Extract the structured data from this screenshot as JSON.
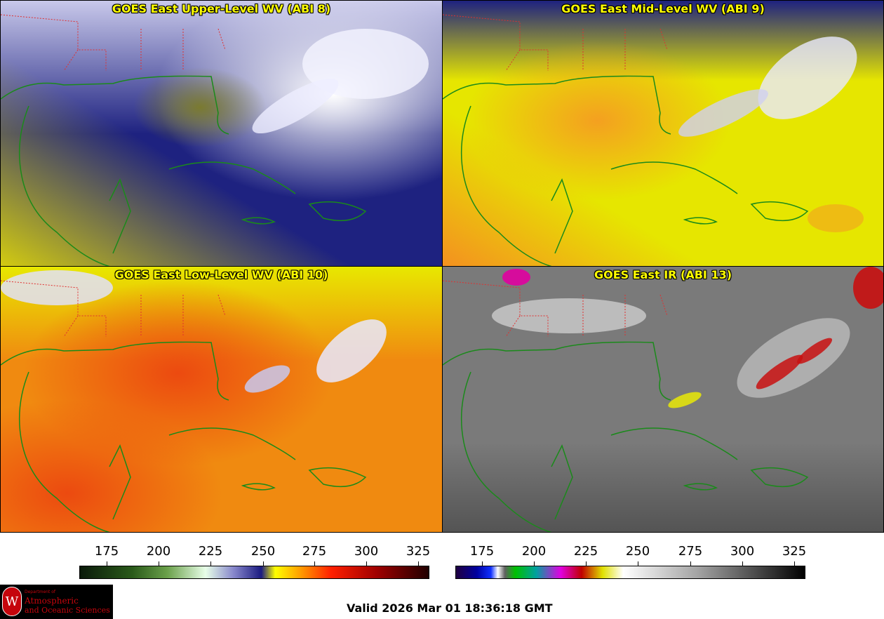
{
  "panels": [
    {
      "title": "GOES East Upper-Level WV (ABI 8)"
    },
    {
      "title": "GOES East Mid-Level WV (ABI 9)"
    },
    {
      "title": "GOES East Low-Level WV (ABI 10)"
    },
    {
      "title": "GOES East IR (ABI 13)"
    }
  ],
  "wv_scale": {
    "ticks": [
      "175",
      "200",
      "225",
      "250",
      "275",
      "300",
      "325"
    ]
  },
  "ir_scale": {
    "ticks": [
      "175",
      "200",
      "225",
      "250",
      "275",
      "300",
      "325"
    ]
  },
  "logo": {
    "dept": "Department of",
    "line1": "Atmospheric",
    "line2": "and Oceanic Sciences",
    "seal": "W"
  },
  "valid_time": "Valid 2026 Mar 01 18:36:18 GMT",
  "colors": {
    "upper_wv_base": "#1e2280",
    "mid_wv_base": "#e6e600",
    "low_wv_base": "#f08a10",
    "ir_base": "#7a7a7a",
    "coast": "#1a8a1a",
    "state_border": "#e03030",
    "title": "#ffff00"
  }
}
